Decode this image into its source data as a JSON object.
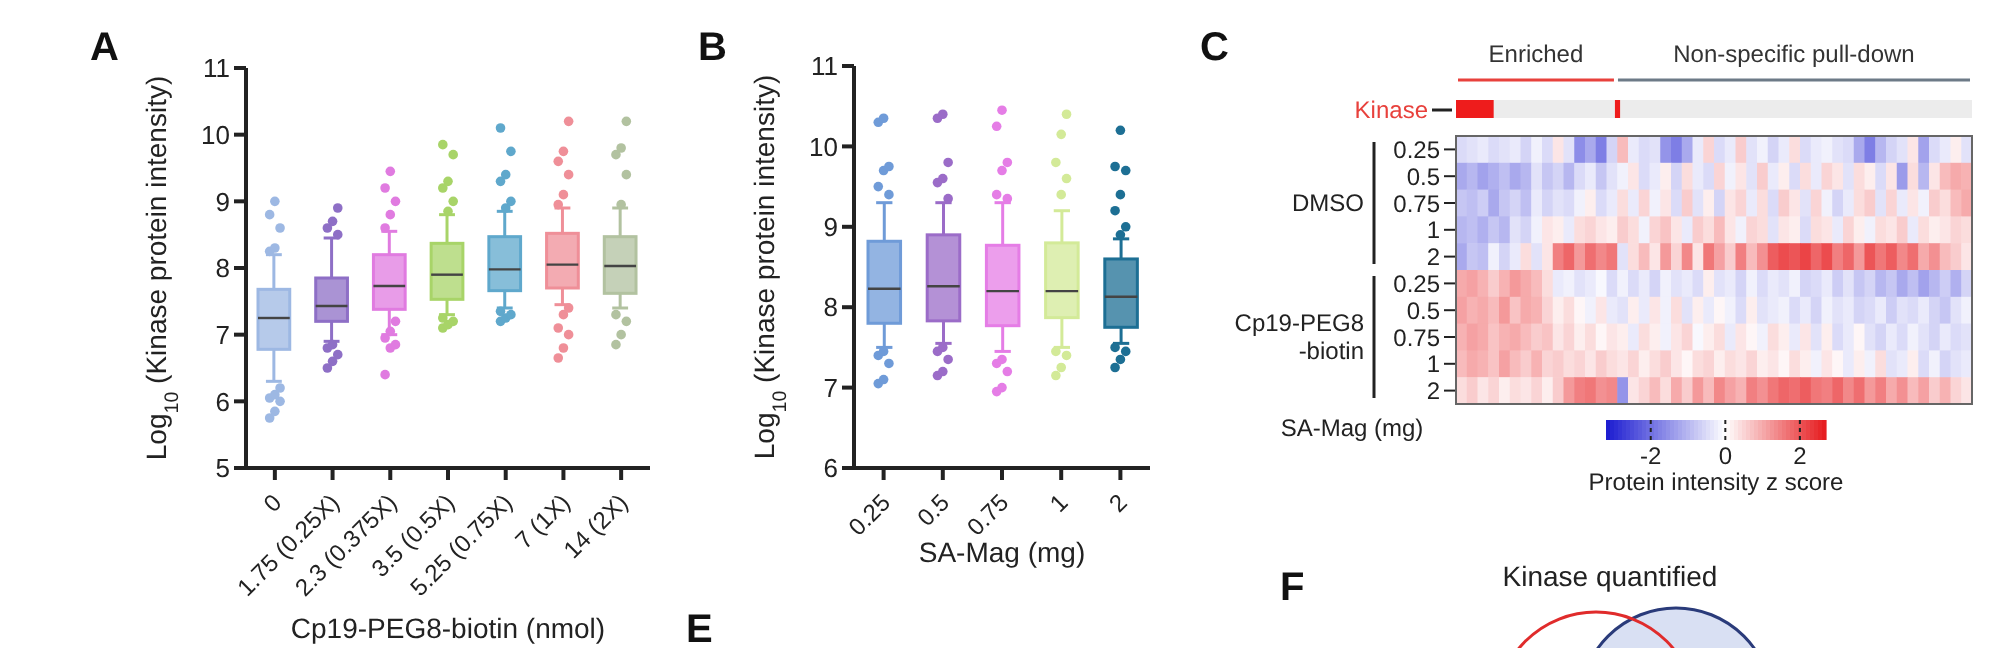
{
  "chart_data": [
    {
      "type": "box",
      "annotations": [
        "A"
      ],
      "xlabel": "Cp19-PEG8-biotin (nmol)",
      "ylabel": "Log$_{10}$ (Kinase protein intensity)",
      "categories": [
        "0",
        "1.75 (0.25X)",
        "2.3 (0.375X)",
        "3.5 (0.5X)",
        "5.25 (0.75X)",
        "7 (1X)",
        "14 (2X)"
      ],
      "colors": [
        "#9db8e3",
        "#8e6fc6",
        "#e07be0",
        "#a8d468",
        "#5fa8cc",
        "#ef8f98",
        "#b2c2a0"
      ],
      "ylim": [
        5,
        11
      ],
      "yticks": [
        5,
        6,
        7,
        8,
        9,
        10,
        11
      ],
      "boxes": [
        {
          "low": 6.3,
          "q1": 6.78,
          "median": 7.25,
          "q3": 7.68,
          "high": 8.2,
          "outliers": [
            5.75,
            5.85,
            6.0,
            6.05,
            6.1,
            6.2,
            8.25,
            8.3,
            8.6,
            8.8,
            9.0
          ]
        },
        {
          "low": 6.9,
          "q1": 7.2,
          "median": 7.43,
          "q3": 7.85,
          "high": 8.45,
          "outliers": [
            6.5,
            6.6,
            6.7,
            6.8,
            6.85,
            8.5,
            8.6,
            8.7,
            8.9
          ]
        },
        {
          "low": 7.0,
          "q1": 7.38,
          "median": 7.73,
          "q3": 8.2,
          "high": 8.55,
          "outliers": [
            6.4,
            6.8,
            6.85,
            6.95,
            7.05,
            7.2,
            8.6,
            8.8,
            9.0,
            9.2,
            9.45
          ]
        },
        {
          "low": 7.3,
          "q1": 7.53,
          "median": 7.9,
          "q3": 8.37,
          "high": 8.8,
          "outliers": [
            7.1,
            7.15,
            7.2,
            7.25,
            8.85,
            9.0,
            9.2,
            9.3,
            9.7,
            9.85
          ]
        },
        {
          "low": 7.4,
          "q1": 7.66,
          "median": 7.98,
          "q3": 8.47,
          "high": 8.85,
          "outliers": [
            7.2,
            7.25,
            7.3,
            7.35,
            8.9,
            9.0,
            9.3,
            9.4,
            9.75,
            10.1
          ]
        },
        {
          "low": 7.45,
          "q1": 7.7,
          "median": 8.05,
          "q3": 8.52,
          "high": 8.9,
          "outliers": [
            6.65,
            6.8,
            7.0,
            7.1,
            7.3,
            7.4,
            8.95,
            9.1,
            9.4,
            9.6,
            9.75,
            10.2
          ]
        },
        {
          "low": 7.4,
          "q1": 7.62,
          "median": 8.03,
          "q3": 8.47,
          "high": 8.9,
          "outliers": [
            6.85,
            7.0,
            7.2,
            7.3,
            8.95,
            9.4,
            9.7,
            9.8,
            10.2
          ]
        }
      ]
    },
    {
      "type": "box",
      "annotations": [
        "B"
      ],
      "xlabel": "SA-Mag (mg)",
      "ylabel": "Log$_{10}$ (Kinase protein intensity)",
      "categories": [
        "0.25",
        "0.5",
        "0.75",
        "1",
        "2"
      ],
      "colors": [
        "#6f9bd8",
        "#9b6cc8",
        "#e57de6",
        "#d3ea98",
        "#1d6f94"
      ],
      "ylim": [
        6,
        11
      ],
      "yticks": [
        6,
        7,
        8,
        9,
        10,
        11
      ],
      "boxes": [
        {
          "low": 7.5,
          "q1": 7.8,
          "median": 8.23,
          "q3": 8.82,
          "high": 9.3,
          "outliers": [
            7.05,
            7.1,
            7.3,
            7.4,
            7.45,
            9.4,
            9.5,
            9.7,
            9.75,
            10.3,
            10.35
          ]
        },
        {
          "low": 7.55,
          "q1": 7.83,
          "median": 8.26,
          "q3": 8.9,
          "high": 9.3,
          "outliers": [
            7.15,
            7.2,
            7.35,
            7.45,
            7.5,
            9.35,
            9.55,
            9.6,
            9.8,
            10.35,
            10.4
          ]
        },
        {
          "low": 7.45,
          "q1": 7.77,
          "median": 8.2,
          "q3": 8.77,
          "high": 9.3,
          "outliers": [
            6.95,
            7.0,
            7.2,
            7.3,
            7.35,
            9.35,
            9.4,
            9.7,
            9.8,
            10.25,
            10.45
          ]
        },
        {
          "low": 7.5,
          "q1": 7.87,
          "median": 8.2,
          "q3": 8.8,
          "high": 9.2,
          "outliers": [
            7.15,
            7.25,
            7.4,
            7.45,
            9.4,
            9.6,
            9.8,
            10.15,
            10.4
          ]
        },
        {
          "low": 7.55,
          "q1": 7.75,
          "median": 8.13,
          "q3": 8.6,
          "high": 8.85,
          "outliers": [
            7.25,
            7.35,
            7.45,
            7.5,
            8.9,
            9.0,
            9.2,
            9.4,
            9.7,
            9.75,
            10.2
          ]
        }
      ]
    },
    {
      "type": "heatmap",
      "annotations": [
        "C",
        "DMSO",
        "Cp19-PEG8\n-biotin",
        "Enriched",
        "Non-specific pull-down",
        "Kinase"
      ],
      "ylabel": "SA-Mag (mg)",
      "clabel": "Protein intensity z score",
      "clim": [
        -3.2,
        2.7
      ],
      "cticks": [
        -2,
        0,
        2
      ],
      "categories": [
        null,
        null,
        null,
        null,
        null,
        null,
        null,
        null,
        null,
        null,
        null,
        null,
        null,
        null,
        null,
        null,
        null,
        null,
        null,
        null,
        null,
        null,
        null,
        null,
        null,
        null,
        null,
        null,
        null,
        null,
        null,
        null,
        null,
        null,
        null,
        null,
        null,
        null,
        null,
        null,
        null,
        null,
        null,
        null,
        null,
        null,
        null,
        null
      ],
      "y_categories": [
        "0.25",
        "0.5",
        "0.75",
        "1",
        "2",
        "0.25",
        "0.5",
        "0.75",
        "1",
        "2"
      ],
      "cells": [
        [
          -0.5,
          -0.4,
          -0.3,
          -0.5,
          -0.4,
          -0.3,
          -0.6,
          -0.2,
          -0.5,
          0.3,
          -0.4,
          -1.6,
          -1.2,
          -1.8,
          -0.6,
          0.8,
          -0.3,
          -0.5,
          -0.4,
          -1.5,
          -1.8,
          -1.2,
          -0.3,
          0.5,
          -0.5,
          -0.3,
          0.6,
          -0.4,
          -0.2,
          -0.6,
          -0.3,
          0.4,
          -0.5,
          -0.3,
          -0.2,
          -0.4,
          -0.5,
          -1.2,
          -1.8,
          -1.0,
          -0.6,
          -0.4,
          0.3,
          -1.3,
          -0.5,
          -0.3,
          0.2,
          -0.4
        ],
        [
          -1.2,
          -1.0,
          -1.3,
          -1.1,
          -0.9,
          -1.2,
          -1.0,
          -0.4,
          -0.8,
          -0.6,
          -1.0,
          -0.5,
          -0.3,
          -0.8,
          -0.4,
          -0.2,
          0.3,
          -0.5,
          -0.3,
          0.2,
          -0.6,
          0.4,
          -0.3,
          -0.5,
          0.5,
          -0.2,
          0.3,
          -0.4,
          0.6,
          -0.3,
          0.2,
          -0.5,
          0.4,
          -0.3,
          0.5,
          0.3,
          -0.4,
          0.4,
          0.2,
          -0.5,
          0.3,
          -1.4,
          0.4,
          -1.0,
          0.3,
          0.8,
          1.0,
          0.9
        ],
        [
          -0.8,
          -0.9,
          -0.7,
          -1.2,
          -0.8,
          -0.6,
          -0.9,
          -0.3,
          -0.6,
          -0.4,
          -0.5,
          -0.2,
          0.2,
          -0.5,
          -0.3,
          0.4,
          -0.3,
          0.5,
          -0.2,
          0.3,
          -0.5,
          0.6,
          -0.4,
          0.2,
          -0.6,
          0.3,
          0.5,
          -0.3,
          0.4,
          -0.5,
          0.6,
          0.3,
          -0.4,
          0.5,
          -0.2,
          -0.6,
          -0.3,
          0.4,
          0.6,
          -0.4,
          0.5,
          -0.3,
          0.3,
          -0.2,
          0.6,
          0.4,
          0.8,
          1.0
        ],
        [
          -1.0,
          -0.9,
          -1.1,
          -0.8,
          -1.0,
          -0.4,
          -0.6,
          -0.2,
          0.3,
          0.2,
          -0.3,
          0.4,
          0.5,
          0.3,
          0.2,
          0.6,
          0.4,
          -0.2,
          0.5,
          0.7,
          0.3,
          -0.3,
          0.6,
          0.4,
          0.8,
          0.3,
          -0.2,
          0.5,
          0.4,
          -0.4,
          0.3,
          0.2,
          -0.5,
          0.4,
          0.3,
          -0.3,
          0.5,
          0.2,
          -0.2,
          0.4,
          0.3,
          0.6,
          -0.3,
          0.4,
          0.2,
          0.3,
          0.5,
          0.4
        ],
        [
          -1.2,
          -0.8,
          -0.9,
          -0.2,
          -0.6,
          -0.3,
          0.4,
          -0.4,
          0.3,
          1.5,
          1.8,
          1.2,
          1.7,
          1.4,
          1.6,
          -0.4,
          0.4,
          0.8,
          0.3,
          1.2,
          0.5,
          1.4,
          0.3,
          1.6,
          1.1,
          0.6,
          1.5,
          0.8,
          1.3,
          1.9,
          2.1,
          2.0,
          2.2,
          1.8,
          2.1,
          1.5,
          1.8,
          1.2,
          2.0,
          1.6,
          1.9,
          1.4,
          1.7,
          1.0,
          1.3,
          0.8,
          0.6,
          0.3
        ],
        [
          1.0,
          1.1,
          0.9,
          0.6,
          0.9,
          1.2,
          1.0,
          0.8,
          0.4,
          -0.3,
          -0.2,
          -0.4,
          -0.3,
          -0.1,
          -0.5,
          -0.2,
          -0.5,
          -0.3,
          -0.6,
          -0.2,
          -0.4,
          -0.3,
          -0.5,
          0.2,
          -0.4,
          -0.3,
          -0.6,
          -0.2,
          -0.5,
          -0.3,
          -0.4,
          -0.2,
          -0.6,
          -0.5,
          -0.3,
          -0.7,
          -0.4,
          -0.8,
          -0.6,
          -1.0,
          -0.8,
          -1.2,
          -0.9,
          -1.3,
          -1.0,
          -0.7,
          -1.1,
          -0.6
        ],
        [
          1.1,
          0.9,
          1.0,
          0.8,
          1.2,
          0.7,
          1.0,
          0.9,
          0.5,
          0.2,
          0.4,
          0.1,
          -0.2,
          0.3,
          -0.3,
          -0.4,
          0.2,
          -0.3,
          0.3,
          -0.2,
          0.4,
          -0.4,
          0.2,
          -0.3,
          0.1,
          -0.2,
          -0.5,
          0.2,
          -0.4,
          -0.3,
          -0.2,
          -0.5,
          -0.3,
          -0.6,
          -0.2,
          -0.4,
          -0.3,
          -0.6,
          -0.5,
          -0.3,
          -0.7,
          -0.4,
          -0.5,
          -0.3,
          -0.6,
          -0.8,
          -0.4,
          -0.2
        ],
        [
          0.9,
          1.1,
          1.0,
          0.7,
          0.9,
          1.0,
          0.8,
          0.6,
          0.7,
          0.3,
          0.5,
          0.2,
          0.4,
          0.1,
          0.3,
          0.2,
          -0.3,
          0.4,
          0.2,
          -0.2,
          0.3,
          0.5,
          -0.1,
          0.2,
          0.4,
          -0.3,
          0.3,
          0.1,
          -0.2,
          0.4,
          0.2,
          -0.3,
          0.3,
          -0.4,
          0.2,
          -0.5,
          -0.3,
          0.1,
          -0.4,
          -0.6,
          -0.3,
          -0.5,
          -0.2,
          -0.4,
          -0.6,
          -0.3,
          -0.5,
          -0.4
        ],
        [
          0.8,
          1.0,
          0.9,
          0.7,
          1.1,
          0.8,
          0.6,
          0.9,
          0.5,
          0.6,
          0.4,
          0.5,
          0.3,
          0.6,
          0.4,
          0.3,
          0.5,
          0.2,
          0.4,
          0.6,
          0.3,
          0.1,
          0.4,
          0.5,
          0.2,
          0.4,
          0.3,
          0.5,
          0.2,
          0.3,
          0.1,
          0.4,
          0.2,
          -0.2,
          0.3,
          0.1,
          -0.3,
          0.2,
          -0.2,
          0.4,
          -0.4,
          -0.3,
          0.2,
          -0.5,
          -0.2,
          -0.6,
          -0.4,
          -0.3
        ],
        [
          0.4,
          0.6,
          0.3,
          0.5,
          0.2,
          0.4,
          0.3,
          0.5,
          0.2,
          0.6,
          1.2,
          1.5,
          1.6,
          1.3,
          1.4,
          -1.5,
          0.3,
          0.5,
          0.8,
          0.4,
          1.0,
          0.6,
          1.2,
          0.8,
          1.4,
          1.1,
          0.9,
          1.5,
          1.3,
          1.6,
          1.8,
          1.7,
          1.9,
          1.6,
          1.5,
          1.8,
          1.4,
          1.7,
          1.2,
          1.5,
          1.0,
          1.3,
          0.8,
          1.1,
          0.6,
          0.9,
          0.5,
          0.3
        ]
      ]
    },
    {
      "type": "other",
      "title": "Kinase quantified",
      "annotations": [
        "E",
        "F"
      ]
    }
  ]
}
